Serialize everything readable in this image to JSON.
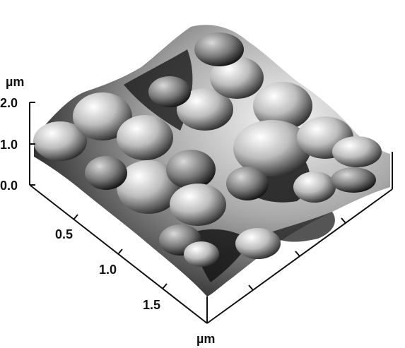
{
  "image": {
    "z_axis": {
      "unit": "µm",
      "ticks": [
        "2.0",
        "1.0",
        "0.0"
      ]
    },
    "x_axis": {
      "unit": "µm",
      "ticks": [
        "0.5",
        "1.0",
        "1.5"
      ]
    },
    "colors": {
      "surface_dark": "#141414",
      "surface_light": "#f2f2f2",
      "axis": "#111111"
    }
  }
}
